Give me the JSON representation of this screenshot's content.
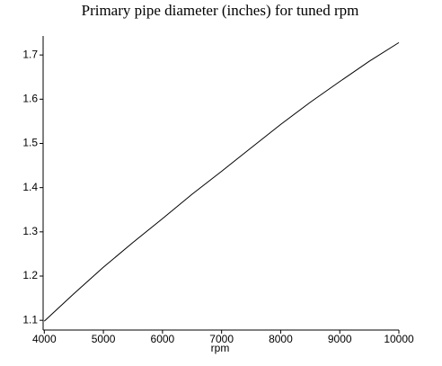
{
  "chart_data": {
    "type": "line",
    "title": "Primary pipe diameter (inches) for tuned rpm",
    "x_label": "rpm",
    "x": [
      4000,
      4500,
      5000,
      5500,
      6000,
      6500,
      7000,
      7500,
      8000,
      8500,
      9000,
      9500,
      10000
    ],
    "series": [
      {
        "color": "#000000",
        "values": [
          1.098,
          1.16,
          1.22,
          1.276,
          1.33,
          1.385,
          1.437,
          1.49,
          1.543,
          1.593,
          1.64,
          1.686,
          1.728
        ]
      }
    ],
    "xlim": [
      3980,
      10000
    ],
    "ylim": [
      1.078,
      1.743
    ],
    "xticks": [
      4000,
      5000,
      6000,
      7000,
      8000,
      9000,
      10000
    ],
    "yticks": [
      1.1,
      1.2,
      1.3,
      1.4,
      1.5,
      1.6,
      1.7
    ]
  }
}
